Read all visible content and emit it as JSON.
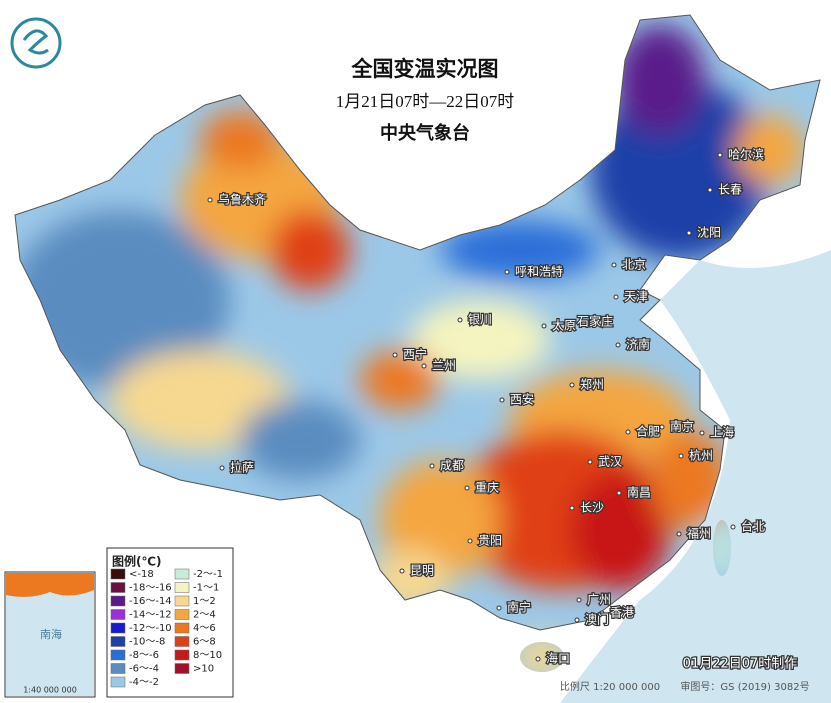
{
  "header": {
    "title": "全国变温实况图",
    "subtitle": "1月21日07时—22日07时",
    "org": "中央气象台"
  },
  "legend": {
    "title": "图例(℃)",
    "items": [
      {
        "label": "<-18",
        "color": "#3a0d0d"
      },
      {
        "label": "-18～-16",
        "color": "#6a1040"
      },
      {
        "label": "-16～-14",
        "color": "#5a1a8a"
      },
      {
        "label": "-14～-12",
        "color": "#9b30d8"
      },
      {
        "label": "-12～-10",
        "color": "#1a1ad0"
      },
      {
        "label": "-10～-8",
        "color": "#1f3fa8"
      },
      {
        "label": "-8～-6",
        "color": "#2a6ed8"
      },
      {
        "label": "-6～-4",
        "color": "#5a8cc0"
      },
      {
        "label": "-4～-2",
        "color": "#9cc8e8"
      },
      {
        "label": "-2～-1",
        "color": "#c8ecdc"
      },
      {
        "label": "-1～1",
        "color": "#f4f4c0"
      },
      {
        "label": "1～2",
        "color": "#f6d890"
      },
      {
        "label": "2～4",
        "color": "#f4a640"
      },
      {
        "label": "4～6",
        "color": "#ec7820"
      },
      {
        "label": "6～8",
        "color": "#e04018"
      },
      {
        "label": "8～10",
        "color": "#c81818"
      },
      {
        "label": ">10",
        "color": "#a0102a"
      }
    ]
  },
  "cities": [
    "乌鲁木齐",
    "哈尔滨",
    "长春",
    "沈阳",
    "呼和浩特",
    "北京",
    "天津",
    "银川",
    "石家庄",
    "太原",
    "济南",
    "西宁",
    "兰州",
    "郑州",
    "西安",
    "合肥",
    "南京",
    "上海",
    "杭州",
    "拉萨",
    "成都",
    "武汉",
    "重庆",
    "长沙",
    "南昌",
    "贵阳",
    "福州",
    "台北",
    "昆明",
    "南宁",
    "广州",
    "香港",
    "澳门",
    "海口"
  ],
  "inset": {
    "sea": "南海",
    "scale": "1:40 000 000"
  },
  "footer": {
    "made": "01月22日07时制作",
    "scale": "比例尺 1:20 000 000",
    "approval": "审图号：GS (2019) 3082号"
  }
}
